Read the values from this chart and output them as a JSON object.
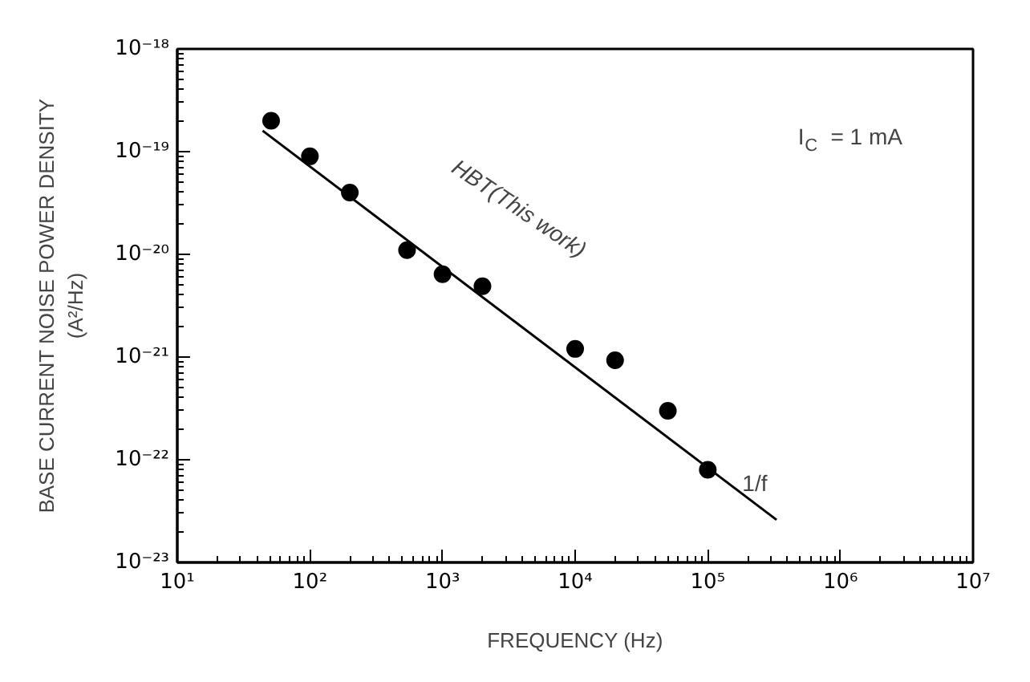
{
  "chart_data": {
    "type": "scatter",
    "xlabel": "FREQUENCY (Hz)",
    "ylabel": "BASE CURRENT NOISE POWER DENSITY\n(A²/Hz)",
    "log": "xy",
    "xlim": [
      10,
      10000000
    ],
    "ylim": [
      1e-23,
      1e-18
    ],
    "xticks": [
      {
        "value": 10,
        "label": "10¹"
      },
      {
        "value": 100,
        "label": "10²"
      },
      {
        "value": 1000,
        "label": "10³"
      },
      {
        "value": 10000,
        "label": "10⁴"
      },
      {
        "value": 100000,
        "label": "10⁵"
      },
      {
        "value": 1000000,
        "label": "10⁶"
      },
      {
        "value": 10000000,
        "label": "10⁷"
      }
    ],
    "yticks": [
      {
        "value": 1e-23,
        "label": "10⁻²³"
      },
      {
        "value": 1e-22,
        "label": "10⁻²²"
      },
      {
        "value": 1e-21,
        "label": "10⁻²¹"
      },
      {
        "value": 1e-20,
        "label": "10⁻²⁰"
      },
      {
        "value": 1e-19,
        "label": "10⁻¹⁹"
      },
      {
        "value": 1e-18,
        "label": "10⁻¹⁸"
      }
    ],
    "grid": false,
    "series": [
      {
        "color": "#000000",
        "marker": "circle",
        "x": [
          51,
          100,
          200,
          540,
          1000,
          2000,
          10000,
          20000,
          50000,
          100000
        ],
        "values": [
          2e-19,
          9e-20,
          4e-20,
          1.1e-20,
          6.4e-21,
          4.9e-21,
          1.2e-21,
          9.3e-22,
          3e-22,
          8e-23
        ]
      },
      {
        "type": "line",
        "color": "#000000",
        "line_style": "solid",
        "x": [
          44,
          330000
        ],
        "values": [
          1.6e-19,
          2.6e-23
        ]
      }
    ],
    "annotations": [
      "HBT(This work)",
      "1/f",
      "I$_{C}$ = 1 mA"
    ]
  }
}
